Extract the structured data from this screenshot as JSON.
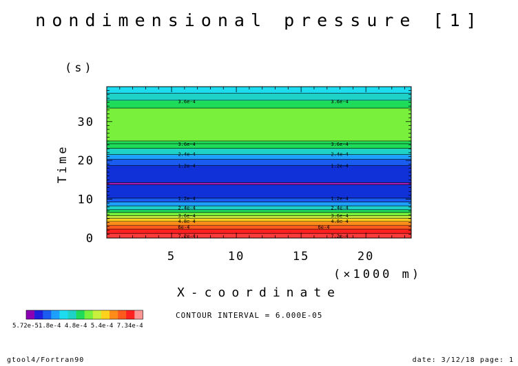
{
  "chart_data": {
    "type": "heatmap",
    "title": "nondimensional pressure [1]",
    "xlabel": "X-coordinate",
    "xunit": "(×1000 m)",
    "ylabel": "Time",
    "yunit": "(s)",
    "xlim": [
      0,
      23.5
    ],
    "ylim": [
      0,
      39
    ],
    "xticks": [
      5,
      10,
      15,
      20
    ],
    "yticks": [
      0,
      10,
      20,
      30
    ],
    "bands": [
      {
        "y0": 0.0,
        "y1": 1.2,
        "color": "#ff3a3a"
      },
      {
        "y0": 1.2,
        "y1": 2.3,
        "color": "#ff2020"
      },
      {
        "y0": 2.3,
        "y1": 3.3,
        "color": "#ff5a1e"
      },
      {
        "y0": 3.3,
        "y1": 4.3,
        "color": "#ff8c1a"
      },
      {
        "y0": 4.3,
        "y1": 5.1,
        "color": "#ffd21e"
      },
      {
        "y0": 5.1,
        "y1": 5.8,
        "color": "#c8f03c"
      },
      {
        "y0": 5.8,
        "y1": 6.6,
        "color": "#78f03c"
      },
      {
        "y0": 6.6,
        "y1": 7.3,
        "color": "#1edc5a"
      },
      {
        "y0": 7.3,
        "y1": 8.3,
        "color": "#1ed2c8"
      },
      {
        "y0": 8.3,
        "y1": 9.3,
        "color": "#1ea0ff"
      },
      {
        "y0": 9.3,
        "y1": 10.3,
        "color": "#1a5cf0"
      },
      {
        "y0": 10.3,
        "y1": 13.8,
        "color": "#1030d8"
      },
      {
        "y0": 13.8,
        "y1": 14.3,
        "color": "#b41eb4"
      },
      {
        "y0": 14.3,
        "y1": 18.7,
        "color": "#1030d8"
      },
      {
        "y0": 18.7,
        "y1": 20.3,
        "color": "#1a5cf0"
      },
      {
        "y0": 20.3,
        "y1": 21.5,
        "color": "#1ea0ff"
      },
      {
        "y0": 21.5,
        "y1": 23.1,
        "color": "#1ed2c8"
      },
      {
        "y0": 23.1,
        "y1": 24.3,
        "color": "#1edc5a"
      },
      {
        "y0": 24.3,
        "y1": 25.0,
        "color": "#1edc5a"
      },
      {
        "y0": 25.0,
        "y1": 33.5,
        "color": "#78f03c"
      },
      {
        "y0": 33.5,
        "y1": 35.5,
        "color": "#1edc5a"
      },
      {
        "y0": 35.5,
        "y1": 37.3,
        "color": "#1ed2c8"
      },
      {
        "y0": 37.3,
        "y1": 39.0,
        "color": "#1edcf0"
      }
    ],
    "contour_labels": [
      {
        "y": 35.2,
        "text": "3.6e-4",
        "xs": [
          5.5,
          17.3
        ]
      },
      {
        "y": 24.2,
        "text": "3.6e-4",
        "xs": [
          5.5,
          17.3
        ]
      },
      {
        "y": 21.6,
        "text": "2.4e-4",
        "xs": [
          5.5,
          17.3
        ]
      },
      {
        "y": 18.6,
        "text": "1.2e-4",
        "xs": [
          5.5,
          17.3
        ]
      },
      {
        "y": 10.2,
        "text": "1.2e-4",
        "xs": [
          5.5,
          17.3
        ]
      },
      {
        "y": 7.8,
        "text": "2.4e-4",
        "xs": [
          5.5,
          17.3
        ]
      },
      {
        "y": 5.8,
        "text": "3.6e-4",
        "xs": [
          5.5,
          17.3
        ]
      },
      {
        "y": 4.3,
        "text": "4.8e-4",
        "xs": [
          5.5,
          17.3
        ]
      },
      {
        "y": 2.8,
        "text": "6e-4",
        "xs": [
          5.5,
          16.3
        ]
      },
      {
        "y": 0.5,
        "text": "7.2e-4",
        "xs": [
          5.5,
          17.3
        ]
      }
    ],
    "colorbar": {
      "colors": [
        "#8c00b4",
        "#1e1edc",
        "#1a5cf0",
        "#1ea0ff",
        "#1edcf0",
        "#1ed2c8",
        "#1edc5a",
        "#78f03c",
        "#c8f03c",
        "#ffd21e",
        "#ff8c1a",
        "#ff5a1e",
        "#ff2020",
        "#ff9696"
      ],
      "labels": "5.72e-51.8e-4 4.8e-4 5.4e-4   7.34e-4"
    },
    "contour_interval": "CONTOUR INTERVAL = 6.000E-05"
  },
  "footer": {
    "left": "gtool4/Fortran90",
    "right": "date: 3/12/18 page: 1"
  }
}
